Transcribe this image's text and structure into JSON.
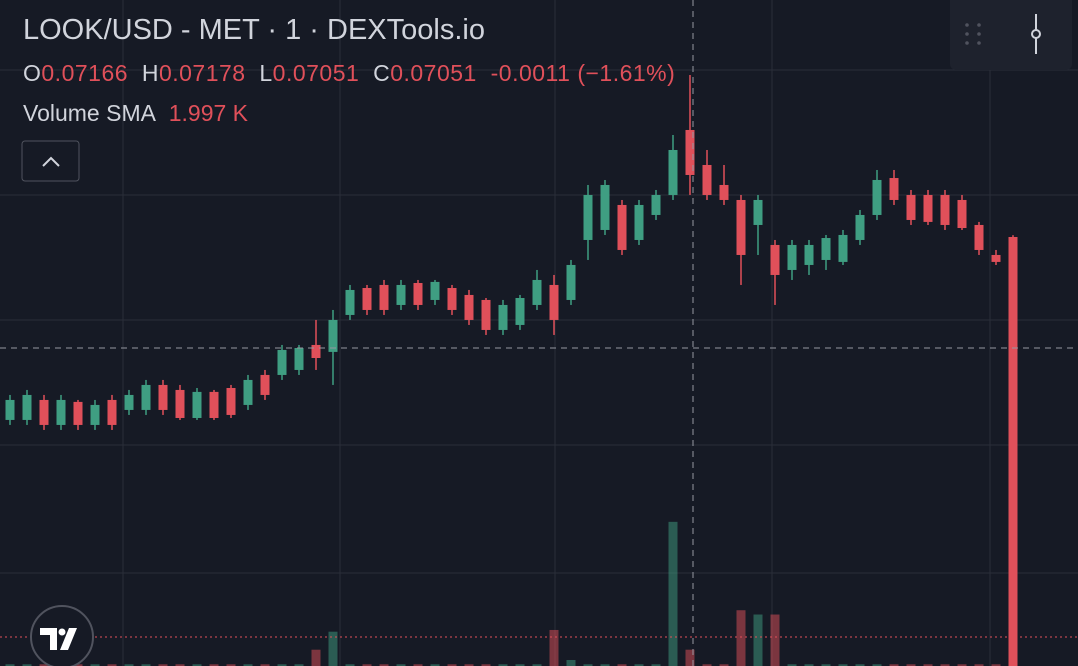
{
  "header": {
    "title": "LOOK/USD - MET · 1 · DEXTools.io",
    "o_label": "O",
    "h_label": "H",
    "l_label": "L",
    "c_label": "C",
    "change": "-0.0011",
    "change_pct": "(−1.61%)",
    "volume_label": "Volume SMA",
    "volume_sma": "1.997 K"
  },
  "chart_data": {
    "type": "candlestick",
    "open": [
      0.06328,
      0.06328,
      0.0642,
      0.06305,
      0.06411,
      0.06305,
      0.0642,
      0.06374,
      0.06374,
      0.06489,
      0.06466,
      0.06337,
      0.06457,
      0.06475,
      0.06397,
      0.06535,
      0.06535,
      0.06558,
      0.06673,
      0.06641,
      0.06811,
      0.06935,
      0.06949,
      0.06857,
      0.06958,
      0.0688,
      0.06935,
      0.06903,
      0.0688,
      0.06742,
      0.06765,
      0.06857,
      0.06949,
      0.0688,
      0.07156,
      0.07202,
      0.07317,
      0.07156,
      0.07271,
      0.07363,
      0.07662,
      0.07501,
      0.07409,
      0.0734,
      0.07225,
      0.07133,
      0.07018,
      0.07041,
      0.07064,
      0.07055,
      0.07156,
      0.07271,
      0.07441,
      0.07363,
      0.07363,
      0.07363,
      0.0734,
      0.07225,
      0.07087,
      0.07166
    ],
    "high": [
      0.06443,
      0.06466,
      0.06443,
      0.06443,
      0.0642,
      0.0642,
      0.06443,
      0.06466,
      0.06512,
      0.06512,
      0.06489,
      0.06475,
      0.06466,
      0.06489,
      0.06535,
      0.06558,
      0.06673,
      0.06673,
      0.06788,
      0.06834,
      0.06949,
      0.06949,
      0.06972,
      0.06972,
      0.06972,
      0.06972,
      0.06949,
      0.06926,
      0.06889,
      0.0688,
      0.06903,
      0.07018,
      0.06995,
      0.07064,
      0.07409,
      0.07432,
      0.0734,
      0.0734,
      0.07386,
      0.07639,
      0.07915,
      0.0757,
      0.07501,
      0.07363,
      0.07363,
      0.07156,
      0.07156,
      0.07156,
      0.07179,
      0.07202,
      0.07294,
      0.07478,
      0.07478,
      0.07386,
      0.07386,
      0.07386,
      0.07363,
      0.07239,
      0.0711,
      0.07178
    ],
    "low": [
      0.06305,
      0.06305,
      0.06282,
      0.06282,
      0.06282,
      0.06282,
      0.06282,
      0.06351,
      0.06351,
      0.06351,
      0.06328,
      0.06328,
      0.06328,
      0.06337,
      0.06374,
      0.0642,
      0.06512,
      0.06535,
      0.06558,
      0.06489,
      0.06788,
      0.06811,
      0.06811,
      0.06834,
      0.06834,
      0.06857,
      0.06811,
      0.06765,
      0.06719,
      0.06719,
      0.06742,
      0.06834,
      0.06719,
      0.06857,
      0.07064,
      0.07179,
      0.07087,
      0.07133,
      0.07248,
      0.0734,
      0.07363,
      0.0734,
      0.07317,
      0.06949,
      0.07087,
      0.06857,
      0.06972,
      0.06995,
      0.07018,
      0.07041,
      0.07133,
      0.07248,
      0.07317,
      0.07225,
      0.07225,
      0.07202,
      0.07202,
      0.07087,
      0.07041,
      0.07051
    ],
    "close": [
      0.0642,
      0.06443,
      0.06305,
      0.0642,
      0.06305,
      0.06397,
      0.06305,
      0.06443,
      0.06489,
      0.06374,
      0.06337,
      0.06457,
      0.06337,
      0.06351,
      0.06512,
      0.06443,
      0.0665,
      0.06659,
      0.06613,
      0.06788,
      0.06926,
      0.06834,
      0.06834,
      0.06949,
      0.06857,
      0.06963,
      0.06834,
      0.06788,
      0.06742,
      0.06857,
      0.06889,
      0.06972,
      0.06788,
      0.07041,
      0.07363,
      0.07409,
      0.0711,
      0.07317,
      0.07363,
      0.0757,
      0.07455,
      0.07363,
      0.0734,
      0.07087,
      0.0734,
      0.06995,
      0.07133,
      0.07133,
      0.07165,
      0.07179,
      0.07271,
      0.07432,
      0.0734,
      0.07248,
      0.07239,
      0.07225,
      0.07211,
      0.0711,
      0.07055,
      0.07051
    ],
    "volume": [
      0.2,
      0.2,
      0.2,
      0.2,
      0.2,
      0.2,
      0.2,
      0.2,
      0.2,
      0.2,
      0.2,
      0.2,
      0.2,
      0.2,
      0.2,
      0.2,
      0.2,
      0.2,
      1.9,
      4,
      0.2,
      0.2,
      0.2,
      0.2,
      0.2,
      0.2,
      0.2,
      0.2,
      0.2,
      0.2,
      0.2,
      0.2,
      4.2,
      0.7,
      0.2,
      0.2,
      0.2,
      0.2,
      0.2,
      16.8,
      1.9,
      0.2,
      0.2,
      6.5,
      6,
      6,
      0.2,
      0.2,
      0.2,
      0.2,
      0.2,
      0.2,
      0.2,
      0.2,
      0.2,
      0.2,
      0.2,
      0.2,
      0.2,
      50
    ],
    "ylim": [
      0.05196,
      0.0826
    ],
    "volume_lim": [
      0,
      50
    ],
    "up_color": "#3f9e82",
    "down_color": "#e0505a"
  }
}
